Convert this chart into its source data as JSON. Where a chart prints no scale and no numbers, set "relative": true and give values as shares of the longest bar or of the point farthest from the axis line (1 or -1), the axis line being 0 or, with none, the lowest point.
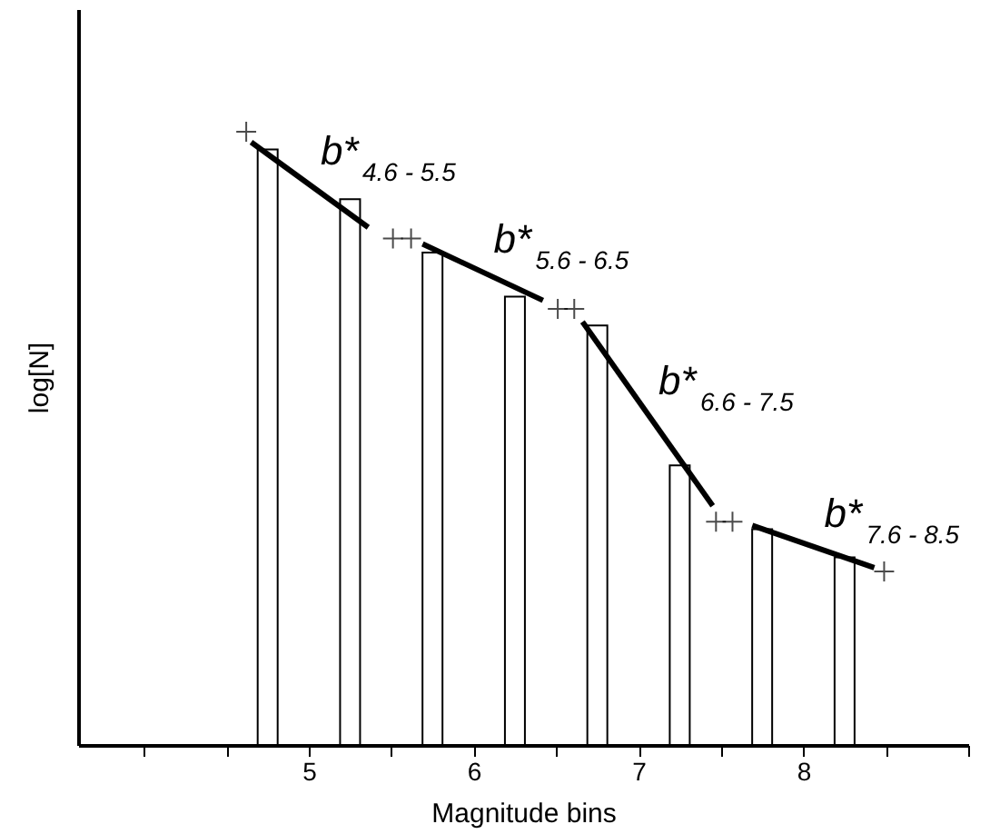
{
  "chart_data": {
    "type": "bar",
    "xlabel": "Magnitude bins",
    "ylabel": "log[N]",
    "relative": true,
    "xlim": [
      3.6,
      9.0
    ],
    "xticks": [
      {
        "value": 4,
        "label": null
      },
      {
        "value": 4.5,
        "label": null
      },
      5,
      {
        "value": 5.5,
        "label": null
      },
      6,
      {
        "value": 6.5,
        "label": null
      },
      7,
      {
        "value": 7.5,
        "label": null
      },
      8,
      {
        "value": 8.5,
        "label": null
      },
      {
        "value": 9,
        "label": null
      }
    ],
    "series": [
      {
        "color": "#ffffff",
        "x": [
          4.75,
          5.25,
          5.75,
          6.25,
          6.75,
          7.25,
          7.75,
          8.25
        ],
        "values": [
          0.971,
          0.89,
          0.803,
          0.731,
          0.684,
          0.456,
          0.352,
          0.306
        ]
      },
      {
        "type": "line",
        "color": "#000000",
        "x": [
          4.65,
          5.36
        ],
        "values": [
          0.983,
          0.844
        ]
      },
      {
        "type": "line",
        "color": "#000000",
        "x": [
          5.69,
          6.42
        ],
        "values": [
          0.817,
          0.725
        ]
      },
      {
        "type": "line",
        "color": "#000000",
        "x": [
          6.66,
          7.45
        ],
        "values": [
          0.69,
          0.39
        ]
      },
      {
        "type": "line",
        "color": "#000000",
        "x": [
          7.69,
          8.43
        ],
        "values": [
          0.358,
          0.289
        ]
      },
      {
        "type": "scatter",
        "color": "#000000",
        "marker": "cross",
        "x": [
          4.62,
          5.51,
          5.62,
          6.51,
          6.61,
          7.47,
          7.57,
          8.49
        ],
        "values": [
          1,
          0.826,
          0.826,
          0.711,
          0.711,
          0.364,
          0.364,
          0.283
        ]
      }
    ],
    "annotations": [
      "b*$_{4.6 - 5.5}$",
      "b*$_{5.6 - 6.5}$",
      "b*$_{6.6 - 7.5}$",
      "b*$_{7.6 - 8.5}$"
    ],
    "grid": false
  }
}
